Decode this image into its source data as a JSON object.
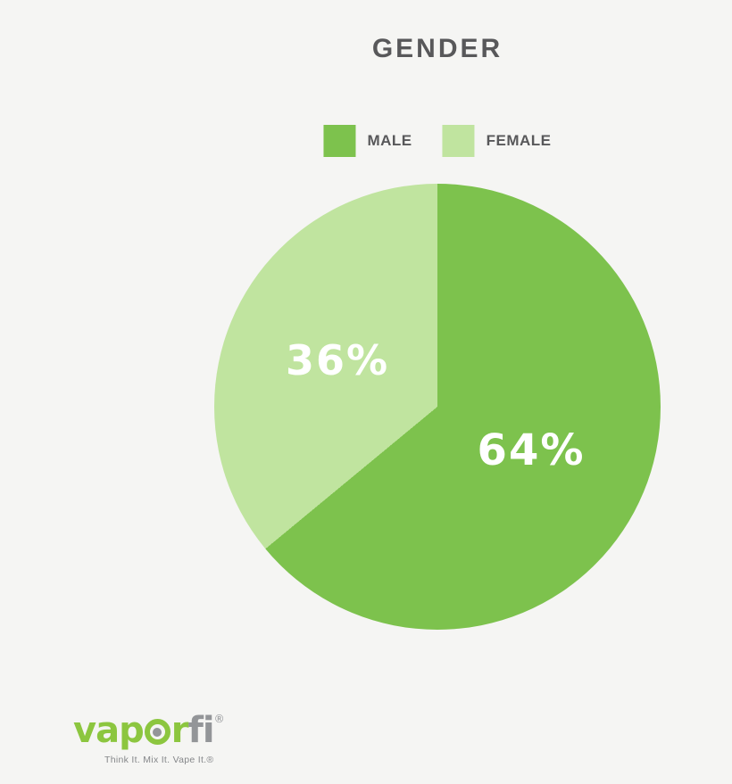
{
  "page": {
    "background_color": "#f5f5f3",
    "title_color": "#58585a"
  },
  "chart_data": {
    "type": "pie",
    "title": "GENDER",
    "categories": [
      "MALE",
      "FEMALE"
    ],
    "values": [
      64,
      36
    ],
    "slices": [
      {
        "label": "MALE",
        "value": 64,
        "display": "64%",
        "color": "#7dc24d"
      },
      {
        "label": "FEMALE",
        "value": 36,
        "display": "36%",
        "color": "#c0e49f"
      }
    ],
    "start_angle_deg": 0,
    "direction": "clockwise",
    "legend_position": "top-center",
    "slice_label_color": "#ffffff"
  },
  "logo": {
    "part1": "vap",
    "part2": "r",
    "part3": "fi",
    "registered": "®",
    "tagline": "Think It. Mix It. Vape It.®",
    "green": "#8cc63f",
    "gray": "#939598"
  }
}
